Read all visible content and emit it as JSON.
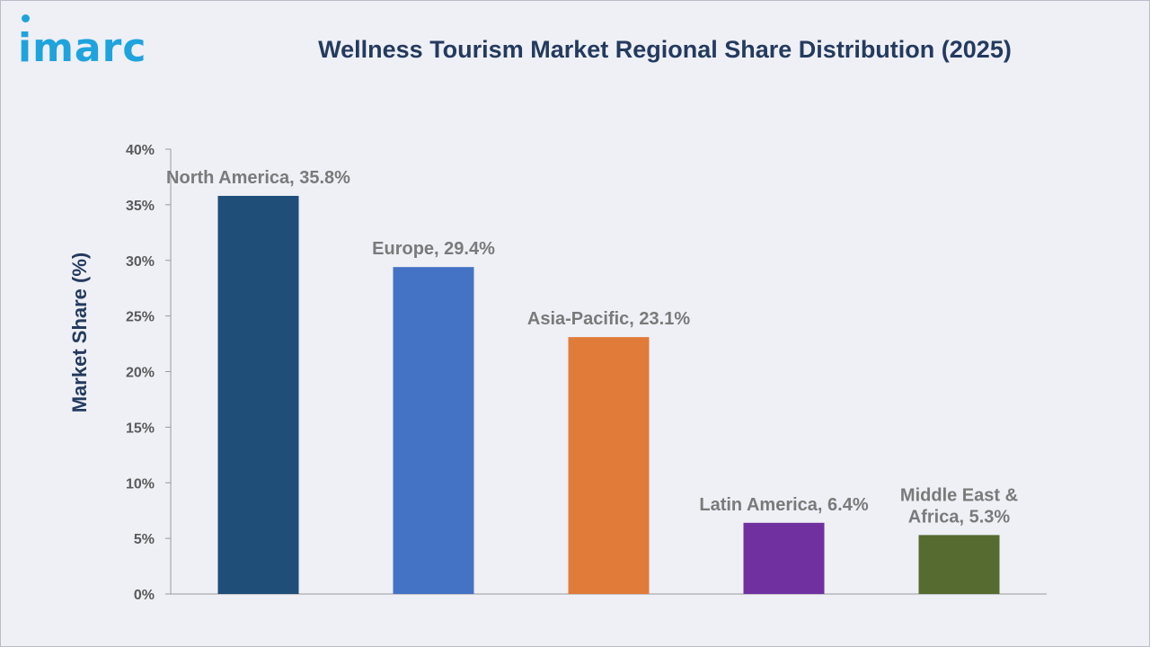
{
  "logo": {
    "text": "imarc"
  },
  "chart_data": {
    "type": "bar",
    "title": "Wellness Tourism Market Regional Share Distribution (2025)",
    "ylabel": "Market Share (%)",
    "xlabel": "",
    "ylim": [
      0,
      40
    ],
    "yticks": [
      "0%",
      "5%",
      "10%",
      "15%",
      "20%",
      "25%",
      "30%",
      "35%",
      "40%"
    ],
    "grid": false,
    "categories": [
      "North America",
      "Europe",
      "Asia-Pacific",
      "Latin America",
      "Middle East & Africa"
    ],
    "values": [
      35.8,
      29.4,
      23.1,
      6.4,
      5.3
    ],
    "data_labels": [
      [
        "North America, 35.8%"
      ],
      [
        "Europe, 29.4%"
      ],
      [
        "Asia-Pacific, 23.1%"
      ],
      [
        "Latin America, 6.4%"
      ],
      [
        "Middle East &",
        "Africa, 5.3%"
      ]
    ],
    "colors": [
      "#1f4e79",
      "#4472c4",
      "#e07b39",
      "#7030a0",
      "#556b2f"
    ]
  }
}
